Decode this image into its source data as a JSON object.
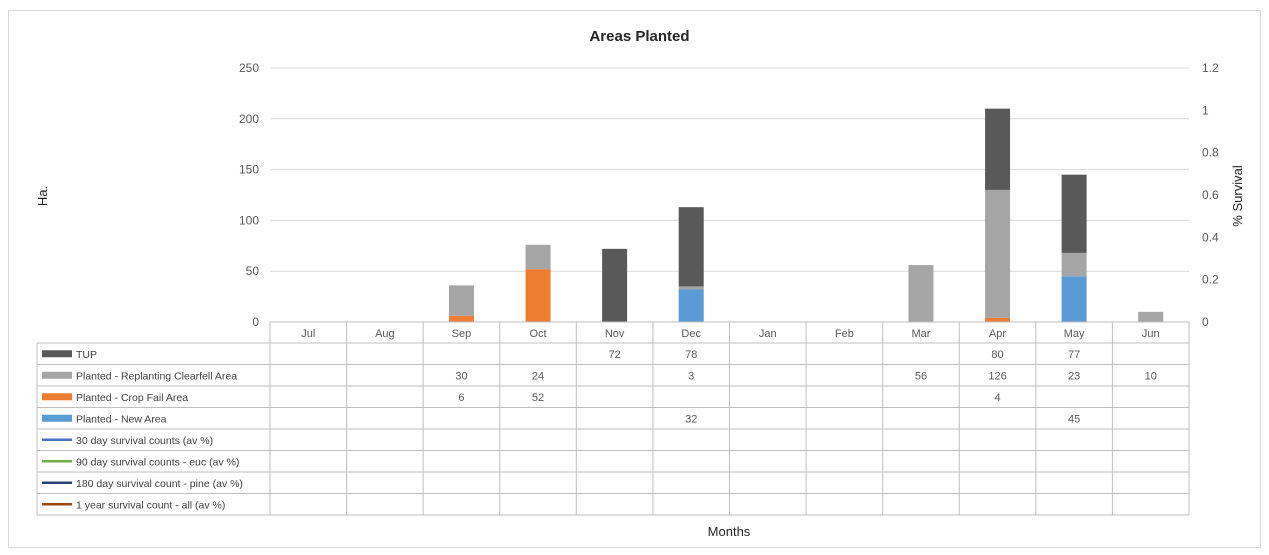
{
  "chart_data": {
    "type": "bar",
    "stacked": true,
    "title": "Areas Planted",
    "xlabel": "Months",
    "ylabel": "Ha.",
    "y2label": "% Survival",
    "ylim": [
      0,
      250
    ],
    "yticks": [
      "0",
      "50",
      "100",
      "150",
      "200",
      "250"
    ],
    "y2lim": [
      0,
      1.2
    ],
    "y2ticks": [
      "0",
      "0.2",
      "0.4",
      "0.6",
      "0.8",
      "1",
      "1.2"
    ],
    "grid": true,
    "legend": "data-table",
    "categories": [
      "Jul",
      "Aug",
      "Sep",
      "Oct",
      "Nov",
      "Dec",
      "Jan",
      "Feb",
      "Mar",
      "Apr",
      "May",
      "Jun"
    ],
    "series": [
      {
        "name": "TUP",
        "color": "#595959",
        "type": "bar",
        "values": [
          null,
          null,
          null,
          null,
          72,
          78,
          null,
          null,
          null,
          80,
          77,
          null
        ]
      },
      {
        "name": "Planted - Replanting Clearfell Area",
        "color": "#a5a5a5",
        "type": "bar",
        "values": [
          null,
          null,
          30,
          24,
          null,
          3,
          null,
          null,
          56,
          126,
          23,
          10
        ]
      },
      {
        "name": "Planted - Crop Fail Area",
        "color": "#ed7d31",
        "type": "bar",
        "values": [
          null,
          null,
          6,
          52,
          null,
          null,
          null,
          null,
          null,
          4,
          null,
          null
        ]
      },
      {
        "name": "Planted - New Area",
        "color": "#5b9bd5",
        "type": "bar",
        "values": [
          null,
          null,
          null,
          null,
          null,
          32,
          null,
          null,
          null,
          null,
          45,
          null
        ]
      },
      {
        "name": "30 day survival counts (av %)",
        "color": "#4472c4",
        "type": "line",
        "values": [
          null,
          null,
          null,
          null,
          null,
          null,
          null,
          null,
          null,
          null,
          null,
          null
        ]
      },
      {
        "name": "90 day survival counts - euc (av %)",
        "color": "#70ad47",
        "type": "line",
        "values": [
          null,
          null,
          null,
          null,
          null,
          null,
          null,
          null,
          null,
          null,
          null,
          null
        ]
      },
      {
        "name": "180 day survival count - pine (av %)",
        "color": "#264478",
        "type": "line",
        "values": [
          null,
          null,
          null,
          null,
          null,
          null,
          null,
          null,
          null,
          null,
          null,
          null
        ]
      },
      {
        "name": "1 year survival count - all (av %)",
        "color": "#9e480e",
        "type": "line",
        "values": [
          null,
          null,
          null,
          null,
          null,
          null,
          null,
          null,
          null,
          null,
          null,
          null
        ]
      }
    ]
  }
}
